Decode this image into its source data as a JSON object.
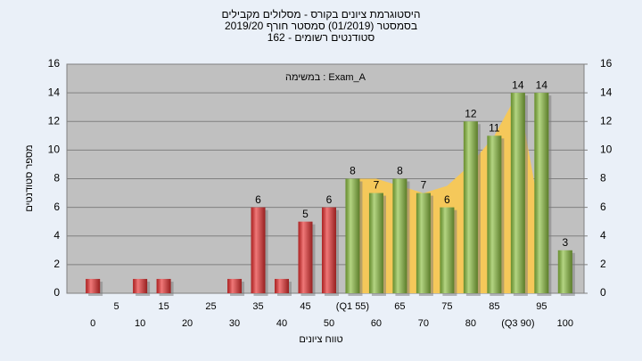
{
  "chart_data": {
    "type": "bar",
    "title": "היסטוגרמת ציונים בקורס - מסלולים מקבילים",
    "subtitle": "בסמסטר (01/2019) סמסטר חורף 2019/20",
    "subtitle2": "סטודנטים רשומים - 162",
    "annotation": "במשימה : Exam_A",
    "y_label": "מספר סטודנטים",
    "x_label": "טווח ציונים",
    "x": [
      0,
      5,
      10,
      15,
      20,
      25,
      30,
      35,
      40,
      45,
      50,
      55,
      60,
      65,
      70,
      75,
      80,
      85,
      90,
      95,
      100
    ],
    "values": [
      1,
      0,
      1,
      1,
      0,
      0,
      1,
      6,
      1,
      5,
      6,
      8,
      7,
      8,
      7,
      6,
      12,
      11,
      14,
      14,
      3
    ],
    "colors": [
      "#e83030",
      "#e83030",
      "#e83030",
      "#e83030",
      "#e83030",
      "#e83030",
      "#e83030",
      "#e83030",
      "#e83030",
      "#e83030",
      "#e83030",
      "#8cbf40",
      "#8cbf40",
      "#8cbf40",
      "#8cbf40",
      "#8cbf40",
      "#8cbf40",
      "#8cbf40",
      "#8cbf40",
      "#8cbf40",
      "#8cbf40"
    ],
    "band": {
      "color": "#f5c85a",
      "x": [
        55,
        60,
        65,
        70,
        75,
        80,
        85,
        90,
        95
      ],
      "values": [
        8,
        8,
        7.5,
        7,
        7.5,
        9,
        11,
        14,
        5
      ]
    },
    "xlim": [
      -5.5,
      104
    ],
    "xticks": [
      0,
      5,
      10,
      15,
      20,
      25,
      30,
      35,
      40,
      45,
      50,
      {
        "value": 55,
        "label": "(Q1 55)"
      },
      60,
      65,
      70,
      75,
      80,
      85,
      {
        "value": 90,
        "label": "(Q3 90)"
      },
      95,
      100
    ],
    "ylim": [
      0,
      16
    ],
    "yticks": [
      0,
      2,
      4,
      6,
      8,
      10,
      12,
      14,
      16
    ],
    "y2lim": [
      0,
      16
    ],
    "y2ticks": [
      0,
      2,
      4,
      6,
      8,
      10,
      12,
      14,
      16
    ],
    "grid": true
  }
}
